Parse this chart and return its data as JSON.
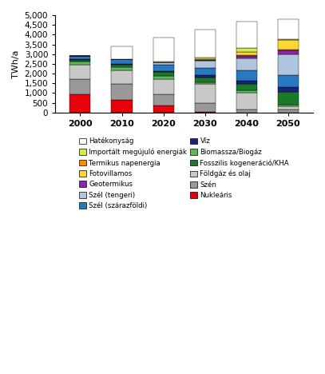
{
  "years": [
    "2000",
    "2010",
    "2020",
    "2030",
    "2040",
    "2050"
  ],
  "categories": [
    "Nukleáris",
    "Szén",
    "Földgáz és olaj",
    "Biomassza/Biogáz",
    "Fosszilis kogeneráció/KHA",
    "Víz",
    "Szél (szárazföldi)",
    "Szél (tengeri)",
    "Geotermikus",
    "Termikus napenergia",
    "Fotovillamos",
    "Importált megújuló energiák",
    "Hatékonyság"
  ],
  "colors": [
    "#e8000b",
    "#999999",
    "#c8c8c8",
    "#5cb85c",
    "#1a7a2a",
    "#1a237e",
    "#2979c0",
    "#b0c4de",
    "#8e24aa",
    "#ff8c00",
    "#fdd835",
    "#d4e857",
    "#ffffff"
  ],
  "data": {
    "2000": [
      950,
      750,
      750,
      150,
      100,
      50,
      150,
      0,
      0,
      0,
      0,
      0,
      0
    ],
    "2010": [
      650,
      800,
      700,
      175,
      125,
      50,
      250,
      0,
      0,
      0,
      0,
      0,
      650
    ],
    "2020": [
      370,
      575,
      750,
      200,
      175,
      50,
      350,
      100,
      0,
      10,
      10,
      10,
      1250
    ],
    "2030": [
      50,
      450,
      950,
      100,
      250,
      100,
      400,
      350,
      30,
      30,
      50,
      50,
      1450
    ],
    "2040": [
      0,
      150,
      850,
      150,
      300,
      200,
      500,
      650,
      100,
      30,
      200,
      200,
      1350
    ],
    "2050": [
      0,
      150,
      150,
      100,
      650,
      250,
      600,
      1100,
      200,
      30,
      500,
      30,
      1050
    ]
  },
  "ylim": [
    0,
    5000
  ],
  "yticks": [
    0,
    500,
    1000,
    1500,
    2000,
    2500,
    3000,
    3500,
    4000,
    4500,
    5000
  ],
  "ylabel": "TWh/a",
  "background_color": "#ffffff",
  "bar_width": 0.5,
  "left_legend": [
    "Hatékonyság",
    "Termikus napenergia",
    "Geotermikus",
    "Szél (szárazföldi)",
    "Biomassza/Biogáz",
    "Földgáz és olaj",
    "Nukleáris"
  ],
  "right_legend": [
    "Importált megújuló energiák",
    "Fotovillamos",
    "Szél (tengeri)",
    "Víz",
    "Fosszilis kogeneráció/KHA",
    "Szén"
  ]
}
